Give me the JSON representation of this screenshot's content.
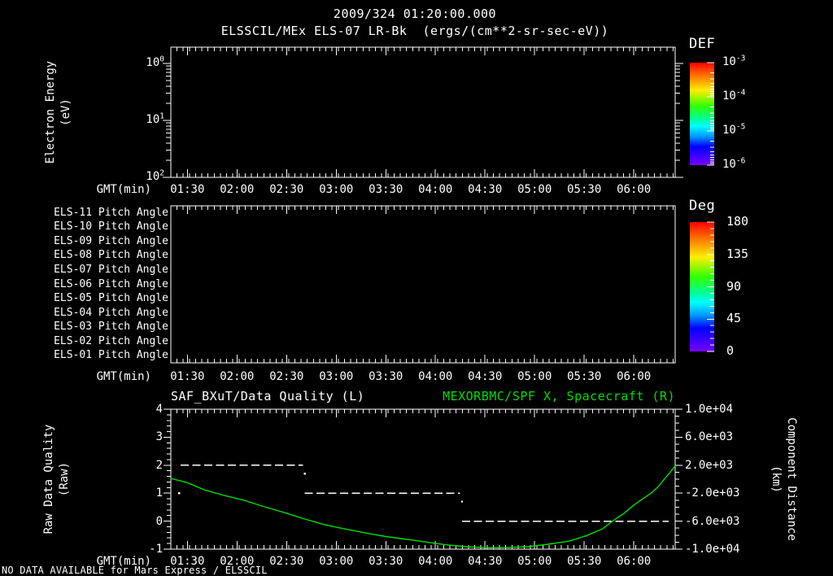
{
  "header": {
    "datetime": "2009/324 01:20:00.000",
    "instrument_title": "ELSSCIL/MEx ELS-07 LR-Bk  (ergs/(cm**2-sr-sec-eV))"
  },
  "x_axis": {
    "label": "GMT(min)",
    "ticks": [
      "01:30",
      "02:00",
      "02:30",
      "03:00",
      "03:30",
      "04:00",
      "04:30",
      "05:00",
      "05:30",
      "06:00"
    ],
    "start_minute": 80,
    "end_minute": 385,
    "tick_minutes": [
      90,
      120,
      150,
      180,
      210,
      240,
      270,
      300,
      330,
      360
    ]
  },
  "panel_energy": {
    "ylabel_line1": "Electron Energy",
    "ylabel_line2": "(eV)",
    "ytick_exponents": [
      2,
      1,
      0
    ],
    "colorbar": {
      "title": "DEF",
      "tick_exponents": [
        -3,
        -4,
        -5,
        -6
      ]
    }
  },
  "panel_pitch": {
    "row_labels": [
      "ELS-11 Pitch Angle",
      "ELS-10 Pitch Angle",
      "ELS-09 Pitch Angle",
      "ELS-08 Pitch Angle",
      "ELS-07 Pitch Angle",
      "ELS-06 Pitch Angle",
      "ELS-05 Pitch Angle",
      "ELS-04 Pitch Angle",
      "ELS-03 Pitch Angle",
      "ELS-02 Pitch Angle",
      "ELS-01 Pitch Angle"
    ],
    "colorbar": {
      "title": "Deg",
      "ticks": [
        "180",
        "135",
        "90",
        "45",
        "0"
      ]
    }
  },
  "panel_quality": {
    "title_left": "SAF_BXuT/Data Quality (L)",
    "title_right": "MEXORBMC/SPF X, Spacecraft (R)",
    "ylabel_left_line1": "Raw Data Quality",
    "ylabel_left_line2": "(Raw)",
    "ylabel_right_line1": "Component Distance",
    "ylabel_right_line2": "(km)",
    "yticks_left": [
      "4",
      "3",
      "2",
      "1",
      "0",
      "-1"
    ],
    "yticks_right": [
      "1.0e+04",
      "6.0e+03",
      "2.0e+03",
      "-2.0e+03",
      "-6.0e+03",
      "-1.0e+04"
    ]
  },
  "footer": {
    "no_data_text": "NO DATA AVAILABLE for Mars Express / ELSSCIL"
  },
  "colors": {
    "background": "#000000",
    "foreground": "#ffffff",
    "accent_green": "#00dd00",
    "rainbow_top_to_bottom": [
      "#ff0000",
      "#ff7700",
      "#ffee00",
      "#33ff00",
      "#00ff99",
      "#00ffff",
      "#0099ff",
      "#0000ff",
      "#7700ff"
    ]
  },
  "chart_data": [
    {
      "type": "heatmap",
      "title": "ELSSCIL/MEx ELS-07 LR-Bk  (ergs/(cm**2-sr-sec-eV))",
      "subtitle_datetime": "2009/324 01:20:00.000",
      "ylabel": "Electron Energy (eV)",
      "yscale": "log",
      "ylim": [
        1,
        200
      ],
      "ytick_labels": [
        "10^2",
        "10^1",
        "10^0"
      ],
      "xlabel": "GMT(min)",
      "x_range": [
        "01:20",
        "06:25"
      ],
      "xticks": [
        "01:30",
        "02:00",
        "02:30",
        "03:00",
        "03:30",
        "04:00",
        "04:30",
        "05:00",
        "05:30",
        "06:00"
      ],
      "colorbar": {
        "title": "DEF",
        "scale": "log",
        "tick_labels": [
          "10^-3",
          "10^-4",
          "10^-5",
          "10^-6"
        ],
        "range": [
          1e-06,
          0.001
        ]
      },
      "values": [],
      "note": "panel is empty - no data available"
    },
    {
      "type": "heatmap",
      "rows": [
        "ELS-11 Pitch Angle",
        "ELS-10 Pitch Angle",
        "ELS-09 Pitch Angle",
        "ELS-08 Pitch Angle",
        "ELS-07 Pitch Angle",
        "ELS-06 Pitch Angle",
        "ELS-05 Pitch Angle",
        "ELS-04 Pitch Angle",
        "ELS-03 Pitch Angle",
        "ELS-02 Pitch Angle",
        "ELS-01 Pitch Angle"
      ],
      "xlabel": "GMT(min)",
      "x_range": [
        "01:20",
        "06:25"
      ],
      "xticks": [
        "01:30",
        "02:00",
        "02:30",
        "03:00",
        "03:30",
        "04:00",
        "04:30",
        "05:00",
        "05:30",
        "06:00"
      ],
      "colorbar": {
        "title": "Deg",
        "ticks": [
          180,
          135,
          90,
          45,
          0
        ],
        "range": [
          0,
          180
        ]
      },
      "values": [],
      "note": "panel is empty - no data available"
    },
    {
      "type": "line",
      "title_left": "SAF_BXuT/Data Quality (L)",
      "title_right": "MEXORBMC/SPF X, Spacecraft (R)",
      "xlabel": "GMT(min)",
      "x_range": [
        "01:20",
        "06:25"
      ],
      "xticks": [
        "01:30",
        "02:00",
        "02:30",
        "03:00",
        "03:30",
        "04:00",
        "04:30",
        "05:00",
        "05:30",
        "06:00"
      ],
      "ylabel_left": "Raw Data Quality (Raw)",
      "ylim_left": [
        -1,
        4
      ],
      "ylabel_right": "Component Distance (km)",
      "ylim_right": [
        -10000,
        10000
      ],
      "series": [
        {
          "name": "SAF_BXuT/Data Quality",
          "axis": "left",
          "style": "white-dashed-steps",
          "steps": [
            {
              "value": 2,
              "start": "01:26",
              "end": "02:40",
              "start_min": 86,
              "end_min": 160
            },
            {
              "value": 1,
              "start": "02:41",
              "end": "04:15",
              "start_min": 161,
              "end_min": 255
            },
            {
              "value": 0,
              "start": "04:16",
              "end": "06:21",
              "start_min": 256,
              "end_min": 381
            }
          ],
          "transition_dots": [
            {
              "t_min": 85,
              "value": 1.0
            },
            {
              "t_min": 161,
              "value": 1.7
            },
            {
              "t_min": 256,
              "value": 0.7
            }
          ]
        },
        {
          "name": "MEXORBMC/SPF X Spacecraft Component Distance",
          "axis": "right",
          "style": "green-solid",
          "unit": "km",
          "t_min": [
            80,
            90,
            100,
            112,
            124,
            136,
            149,
            161,
            173,
            185,
            198,
            210,
            223,
            235,
            247,
            259,
            272,
            284,
            296,
            308,
            321,
            331,
            341,
            347,
            354,
            360,
            366,
            371,
            375,
            378,
            382,
            385
          ],
          "km": [
            100,
            -500,
            -1500,
            -2300,
            -3000,
            -3900,
            -4800,
            -5700,
            -6500,
            -7100,
            -7700,
            -8200,
            -8600,
            -9000,
            -9400,
            -9650,
            -9800,
            -9750,
            -9650,
            -9300,
            -8850,
            -8100,
            -7100,
            -6000,
            -4900,
            -3700,
            -2700,
            -1900,
            -1000,
            -100,
            1000,
            1900
          ]
        }
      ]
    }
  ]
}
